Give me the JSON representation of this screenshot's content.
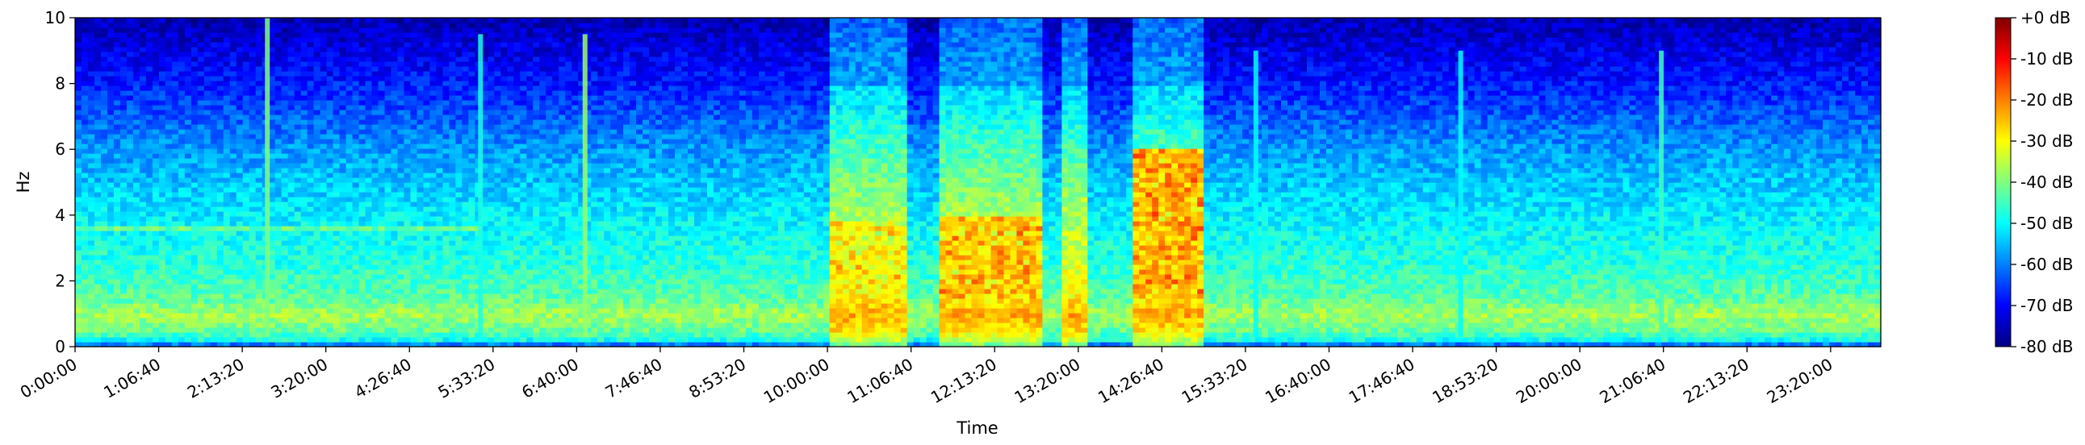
{
  "chart_data": {
    "type": "heatmap",
    "subtype": "spectrogram",
    "title": "",
    "xlabel": "Time",
    "ylabel": "Hz",
    "colormap": "jet",
    "xlim_seconds": [
      0,
      86400
    ],
    "ylim": [
      0,
      10
    ],
    "x_ticks": [
      {
        "seconds": 0,
        "label": "0:00:00"
      },
      {
        "seconds": 4000,
        "label": "1:06:40"
      },
      {
        "seconds": 8000,
        "label": "2:13:20"
      },
      {
        "seconds": 12000,
        "label": "3:20:00"
      },
      {
        "seconds": 16000,
        "label": "4:26:40"
      },
      {
        "seconds": 20000,
        "label": "5:33:20"
      },
      {
        "seconds": 24000,
        "label": "6:40:00"
      },
      {
        "seconds": 28000,
        "label": "7:46:40"
      },
      {
        "seconds": 32000,
        "label": "8:53:20"
      },
      {
        "seconds": 36000,
        "label": "10:00:00"
      },
      {
        "seconds": 40000,
        "label": "11:06:40"
      },
      {
        "seconds": 44000,
        "label": "12:13:20"
      },
      {
        "seconds": 48000,
        "label": "13:20:00"
      },
      {
        "seconds": 52000,
        "label": "14:26:40"
      },
      {
        "seconds": 56000,
        "label": "15:33:20"
      },
      {
        "seconds": 60000,
        "label": "16:40:00"
      },
      {
        "seconds": 64000,
        "label": "17:46:40"
      },
      {
        "seconds": 68000,
        "label": "18:53:20"
      },
      {
        "seconds": 72000,
        "label": "20:00:00"
      },
      {
        "seconds": 76000,
        "label": "21:06:40"
      },
      {
        "seconds": 80000,
        "label": "22:13:20"
      },
      {
        "seconds": 84000,
        "label": "23:20:00"
      }
    ],
    "y_ticks": [
      {
        "value": 0,
        "label": "0"
      },
      {
        "value": 2,
        "label": "2"
      },
      {
        "value": 4,
        "label": "4"
      },
      {
        "value": 6,
        "label": "6"
      },
      {
        "value": 8,
        "label": "8"
      },
      {
        "value": 10,
        "label": "10"
      }
    ],
    "colorbar": {
      "range_db": [
        -80,
        0
      ],
      "ticks": [
        {
          "value": 0,
          "label": "+0 dB"
        },
        {
          "value": -10,
          "label": "-10 dB"
        },
        {
          "value": -20,
          "label": "-20 dB"
        },
        {
          "value": -30,
          "label": "-30 dB"
        },
        {
          "value": -40,
          "label": "-40 dB"
        },
        {
          "value": -50,
          "label": "-50 dB"
        },
        {
          "value": -60,
          "label": "-60 dB"
        },
        {
          "value": -70,
          "label": "-70 dB"
        },
        {
          "value": -80,
          "label": "-80 dB"
        }
      ]
    },
    "background_db_profile": [
      {
        "hz": 0.0,
        "db": -70
      },
      {
        "hz": 0.15,
        "db": -50
      },
      {
        "hz": 0.5,
        "db": -42
      },
      {
        "hz": 1.0,
        "db": -37
      },
      {
        "hz": 1.5,
        "db": -43
      },
      {
        "hz": 2.5,
        "db": -47
      },
      {
        "hz": 4.0,
        "db": -51
      },
      {
        "hz": 6.0,
        "db": -58
      },
      {
        "hz": 8.0,
        "db": -68
      },
      {
        "hz": 10.0,
        "db": -76
      }
    ],
    "high_energy_segments": [
      {
        "start": 36200,
        "end": 39800,
        "peak_db": -25,
        "top_hz": 10,
        "hot_band_hz": [
          1.8,
          3.8
        ]
      },
      {
        "start": 41200,
        "end": 46200,
        "peak_db": -20,
        "top_hz": 10,
        "hot_band_hz": [
          1.5,
          4.0
        ]
      },
      {
        "start": 47200,
        "end": 48400,
        "peak_db": -35,
        "top_hz": 10,
        "hot_band_hz": [
          3.5,
          4.5
        ]
      },
      {
        "start": 50600,
        "end": 54000,
        "peak_db": -18,
        "top_hz": 10,
        "hot_band_hz": [
          1.5,
          6.0
        ]
      }
    ],
    "transient_events": [
      {
        "time": 9200,
        "db": -40,
        "top_hz": 10
      },
      {
        "time": 19400,
        "db": -48,
        "top_hz": 9.5
      },
      {
        "time": 24400,
        "db": -38,
        "top_hz": 9.5
      },
      {
        "time": 56500,
        "db": -50,
        "top_hz": 9
      },
      {
        "time": 66300,
        "db": -50,
        "top_hz": 9
      },
      {
        "time": 75900,
        "db": -45,
        "top_hz": 9
      }
    ],
    "constant_tone": {
      "hz": 3.6,
      "start": 0,
      "end": 19400,
      "db": -42
    },
    "grid": false,
    "legend": "colorbar-right"
  }
}
